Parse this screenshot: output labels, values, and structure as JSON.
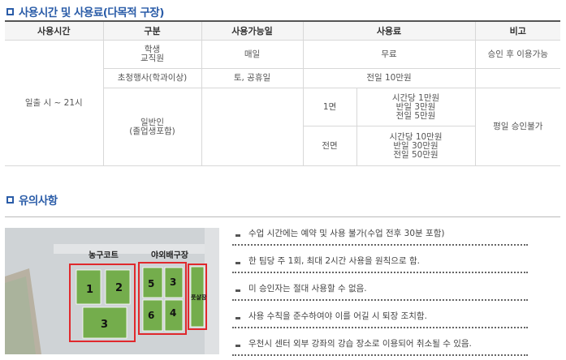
{
  "section1": {
    "title": "사용시간 및 사용료(다목적 구장)"
  },
  "table": {
    "headers": [
      "사용시간",
      "구분",
      "사용가능일",
      "사용료",
      "비고"
    ],
    "usage_time": "일출 시 ~ 21시",
    "row1": {
      "category": [
        "학생",
        "교직원"
      ],
      "days": "매일",
      "fee": "무료",
      "note": "승인 후 이용가능"
    },
    "row2": {
      "category": "초청행사(학과이상)",
      "days": "토, 공휴일",
      "fee": "전일 10만원"
    },
    "row3": {
      "category": [
        "일반인",
        "(졸업생포함)"
      ],
      "note": "평일 승인불가",
      "one_court": {
        "label": "1면",
        "fees": [
          "시간당 1만원",
          "반일 3만원",
          "전일 5만원"
        ]
      },
      "full_court": {
        "label": "전면",
        "fees": [
          "시간당 10만원",
          "반일 30만원",
          "전일 50만원"
        ]
      }
    }
  },
  "section2": {
    "title": "유의사항"
  },
  "map": {
    "basketball_label": "농구코트",
    "volleyball_label": "야외배구장",
    "futsal_label": "풋살장",
    "courts": [
      "1",
      "2",
      "3",
      "5",
      "3",
      "6",
      "4"
    ],
    "colors": {
      "court": "#74ad4c",
      "outline": "#e0282c",
      "ground": "#cfd3d6"
    }
  },
  "notices": [
    "수업 시간에는 예약 및 사용 불가(수업 전후 30분 포함)",
    "한 팀당 주 1회, 최대 2시간 사용을 원칙으로 함.",
    "미 승인자는 절대 사용할 수 없음.",
    "사용 수칙을 준수하여야 이를 어길 시 퇴장 조치함.",
    "우천시 센터 외부 강좌의 강습 장소로 이용되어 취소될 수 있음."
  ]
}
